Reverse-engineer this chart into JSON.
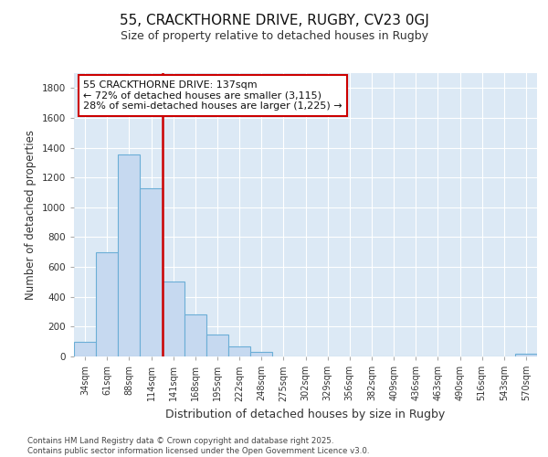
{
  "title_line1": "55, CRACKTHORNE DRIVE, RUGBY, CV23 0GJ",
  "title_line2": "Size of property relative to detached houses in Rugby",
  "xlabel": "Distribution of detached houses by size in Rugby",
  "ylabel": "Number of detached properties",
  "footer_line1": "Contains HM Land Registry data © Crown copyright and database right 2025.",
  "footer_line2": "Contains public sector information licensed under the Open Government Licence v3.0.",
  "annotation_text_line1": "55 CRACKTHORNE DRIVE: 137sqm",
  "annotation_text_line2": "← 72% of detached houses are smaller (3,115)",
  "annotation_text_line3": "28% of semi-detached houses are larger (1,225) →",
  "categories": [
    "34sqm",
    "61sqm",
    "88sqm",
    "114sqm",
    "141sqm",
    "168sqm",
    "195sqm",
    "222sqm",
    "248sqm",
    "275sqm",
    "302sqm",
    "329sqm",
    "356sqm",
    "382sqm",
    "409sqm",
    "436sqm",
    "463sqm",
    "490sqm",
    "516sqm",
    "543sqm",
    "570sqm"
  ],
  "values": [
    100,
    700,
    1355,
    1130,
    500,
    280,
    145,
    65,
    30,
    0,
    0,
    0,
    0,
    0,
    0,
    0,
    0,
    0,
    0,
    0,
    20
  ],
  "bar_color": "#c6d9f0",
  "bar_edgecolor": "#6baed6",
  "red_line_color": "#cc0000",
  "background_color": "#ffffff",
  "plot_bg_color": "#dce9f5",
  "grid_color": "#ffffff",
  "ylim": [
    0,
    1900
  ],
  "yticks": [
    0,
    200,
    400,
    600,
    800,
    1000,
    1200,
    1400,
    1600,
    1800
  ],
  "annotation_box_edgecolor": "#cc0000",
  "annotation_box_facecolor": "#ffffff",
  "red_line_index": 4
}
